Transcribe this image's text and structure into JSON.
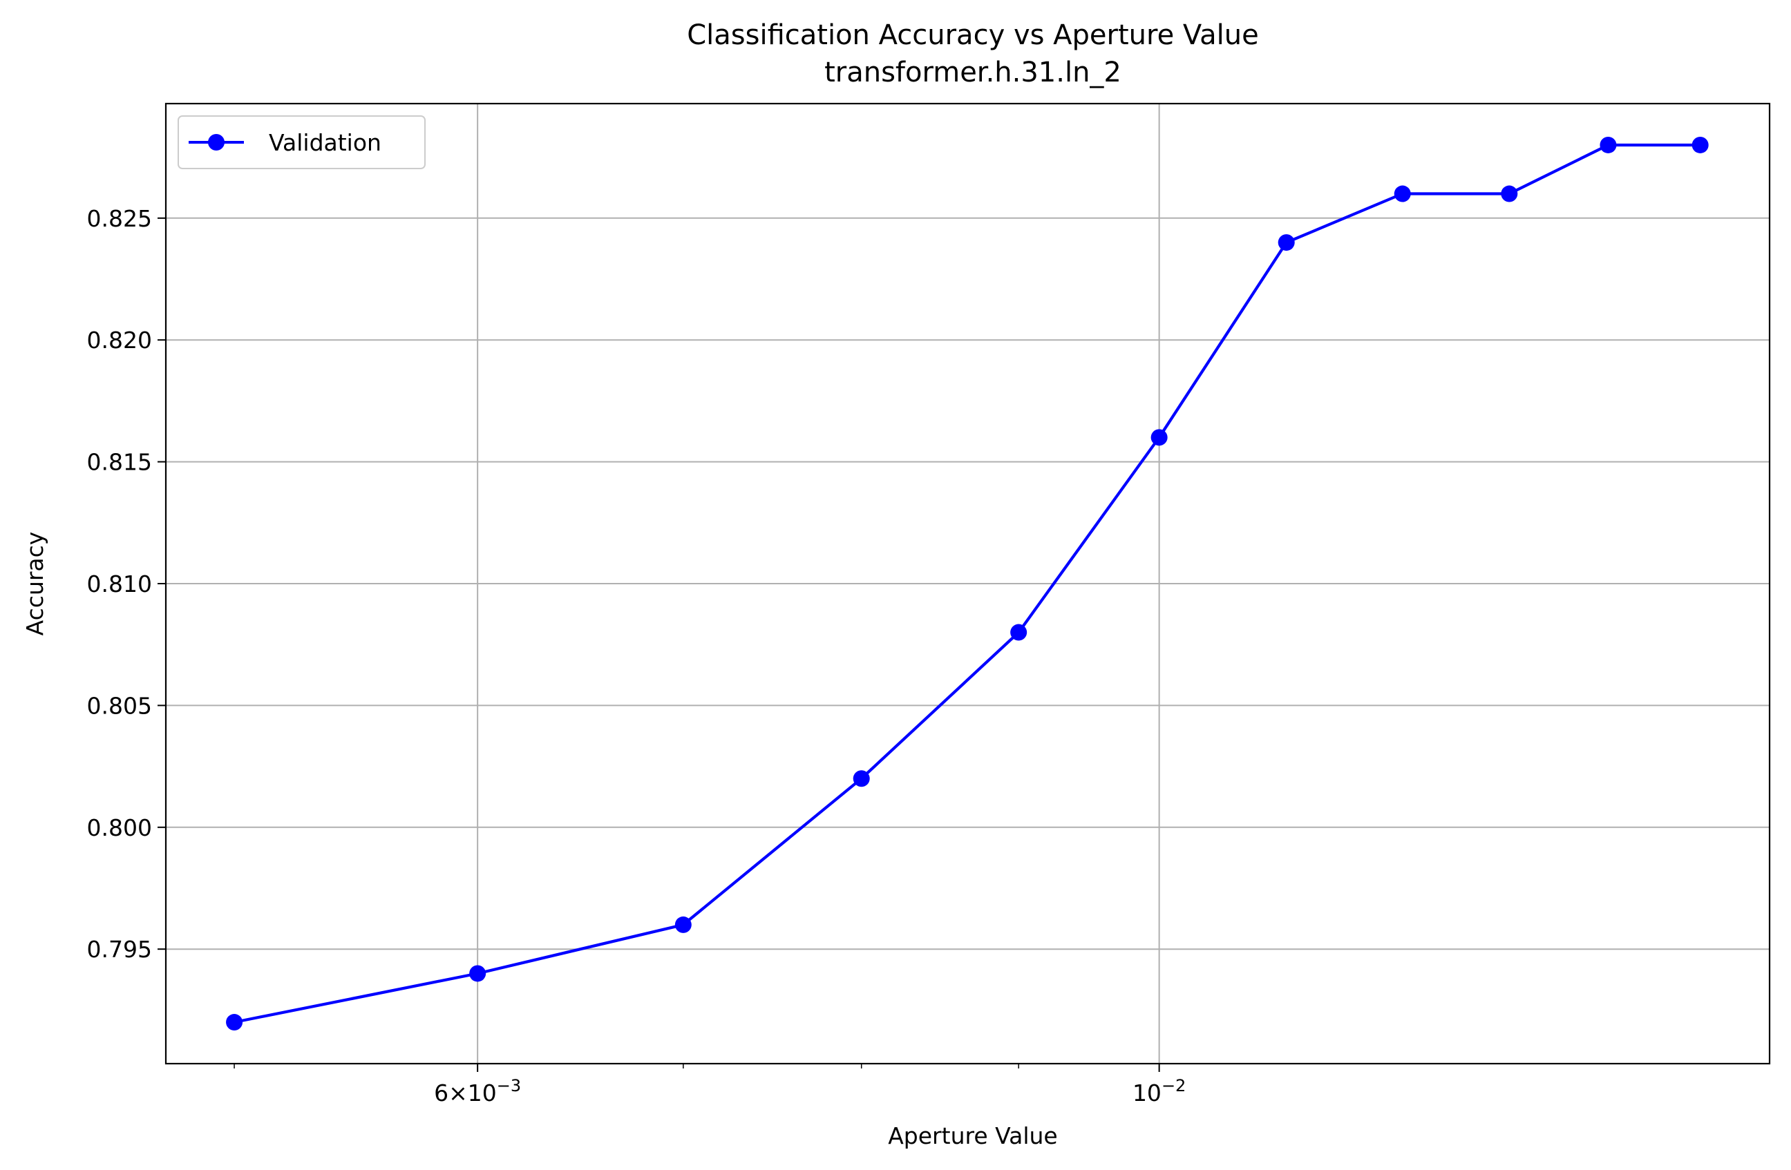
{
  "chart_data": {
    "type": "line",
    "title": "Classification Accuracy vs Aperture Value",
    "subtitle": "transformer.h.31.ln_2",
    "xlabel": "Aperture Value",
    "ylabel": "Accuracy",
    "x_scale": "log",
    "x": [
      0.005,
      0.006,
      0.007,
      0.008,
      0.009,
      0.01,
      0.011,
      0.012,
      0.013,
      0.014,
      0.015
    ],
    "xlim": [
      0.00475,
      0.0158
    ],
    "ylim": [
      0.7903,
      0.8297
    ],
    "x_major_ticks": [
      {
        "value": 0.006,
        "base": "6×10",
        "exp": "−3"
      },
      {
        "value": 0.01,
        "base": "10",
        "exp": "−2"
      }
    ],
    "x_minor_ticks": [
      0.005,
      0.007,
      0.008,
      0.009
    ],
    "y_ticks": [
      {
        "value": 0.795,
        "label": "0.795"
      },
      {
        "value": 0.8,
        "label": "0.800"
      },
      {
        "value": 0.805,
        "label": "0.805"
      },
      {
        "value": 0.81,
        "label": "0.810"
      },
      {
        "value": 0.815,
        "label": "0.815"
      },
      {
        "value": 0.82,
        "label": "0.820"
      },
      {
        "value": 0.825,
        "label": "0.825"
      }
    ],
    "grid": true,
    "legend_position": "upper left",
    "series": [
      {
        "name": "Validation",
        "color": "#0000ff",
        "marker": "circle",
        "values": [
          0.792,
          0.794,
          0.796,
          0.802,
          0.808,
          0.816,
          0.824,
          0.826,
          0.826,
          0.828,
          0.828
        ]
      }
    ]
  }
}
